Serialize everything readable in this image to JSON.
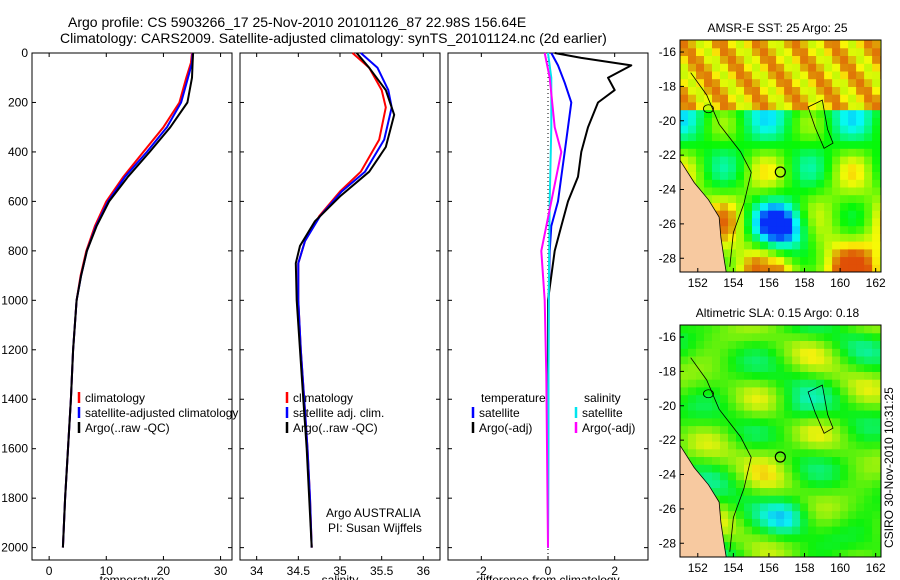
{
  "header": {
    "line1": "Argo profile: CS 5903266_17 25-Nov-2010 20101126_87 22.98S 156.64E",
    "line2": "Climatology: CARS2009. Satellite-adjusted climatology: synTS_20101124.nc (2d earlier)"
  },
  "colors": {
    "climatology": "#ff0000",
    "satellite": "#0000ff",
    "argo": "#000000",
    "satellite_sal": "#00e5ee",
    "argo_sal": "#ff00ff",
    "land": "#f7c9a0"
  },
  "chart_data": [
    {
      "id": "temp",
      "type": "line",
      "xlabel": "temperature",
      "ylabel": "",
      "xlim": [
        -3,
        32
      ],
      "ylim": [
        2050,
        0
      ],
      "xticks": [
        0,
        10,
        20,
        30
      ],
      "yticks": [
        0,
        200,
        400,
        600,
        800,
        1000,
        1200,
        1400,
        1600,
        1800,
        2000
      ],
      "legend": {
        "labels": [
          "climatology",
          "satellite-adjusted climatology",
          "Argo(..raw -QC)"
        ],
        "colors": [
          "#ff0000",
          "#0000ff",
          "#000000"
        ]
      },
      "series": [
        {
          "name": "climatology",
          "color": "#ff0000",
          "points": [
            [
              25.0,
              0
            ],
            [
              24.8,
              40
            ],
            [
              24.0,
              100
            ],
            [
              22.8,
              200
            ],
            [
              20.0,
              300
            ],
            [
              16.5,
              400
            ],
            [
              13.0,
              500
            ],
            [
              10.0,
              600
            ],
            [
              8.0,
              700
            ],
            [
              6.5,
              800
            ],
            [
              5.5,
              900
            ],
            [
              4.8,
              1000
            ],
            [
              4.2,
              1200
            ],
            [
              3.8,
              1400
            ],
            [
              3.3,
              1600
            ],
            [
              2.8,
              1800
            ],
            [
              2.4,
              2000
            ]
          ]
        },
        {
          "name": "satellite-adjusted climatology",
          "color": "#0000ff",
          "points": [
            [
              25.1,
              0
            ],
            [
              25.0,
              40
            ],
            [
              24.3,
              100
            ],
            [
              23.1,
              200
            ],
            [
              20.6,
              300
            ],
            [
              17.1,
              400
            ],
            [
              13.3,
              500
            ],
            [
              10.3,
              600
            ],
            [
              8.2,
              700
            ],
            [
              6.6,
              800
            ],
            [
              5.6,
              900
            ],
            [
              4.8,
              1000
            ],
            [
              4.2,
              1200
            ],
            [
              3.8,
              1400
            ],
            [
              3.3,
              1600
            ],
            [
              2.8,
              1800
            ],
            [
              2.4,
              2000
            ]
          ]
        },
        {
          "name": "Argo(..raw -QC)",
          "color": "#000000",
          "points": [
            [
              25.2,
              0
            ],
            [
              25.1,
              40
            ],
            [
              25.0,
              100
            ],
            [
              24.2,
              200
            ],
            [
              21.2,
              300
            ],
            [
              17.6,
              400
            ],
            [
              13.8,
              500
            ],
            [
              10.5,
              600
            ],
            [
              8.3,
              700
            ],
            [
              6.6,
              800
            ],
            [
              5.6,
              900
            ],
            [
              4.8,
              1000
            ],
            [
              4.2,
              1200
            ],
            [
              3.8,
              1400
            ],
            [
              3.3,
              1600
            ],
            [
              2.8,
              1800
            ],
            [
              2.4,
              2000
            ]
          ]
        }
      ]
    },
    {
      "id": "sal",
      "type": "line",
      "xlabel": "salinity",
      "ylabel": "",
      "xlim": [
        33.8,
        36.2
      ],
      "ylim": [
        2050,
        0
      ],
      "xticks": [
        34,
        34.5,
        35,
        35.5,
        36
      ],
      "legend": {
        "labels": [
          "climatology",
          "satellite adj. clim.",
          "Argo(..raw -QC)"
        ],
        "colors": [
          "#ff0000",
          "#0000ff",
          "#000000"
        ]
      },
      "annotation": [
        "Argo AUSTRALIA",
        "PI: Susan Wijffels"
      ],
      "series": [
        {
          "name": "climatology",
          "color": "#ff0000",
          "points": [
            [
              35.15,
              0
            ],
            [
              35.35,
              60
            ],
            [
              35.5,
              150
            ],
            [
              35.55,
              220
            ],
            [
              35.47,
              350
            ],
            [
              35.25,
              480
            ],
            [
              35.0,
              560
            ],
            [
              34.75,
              660
            ],
            [
              34.58,
              760
            ],
            [
              34.5,
              850
            ],
            [
              34.5,
              1000
            ],
            [
              34.53,
              1200
            ],
            [
              34.57,
              1400
            ],
            [
              34.61,
              1600
            ],
            [
              34.64,
              1800
            ],
            [
              34.66,
              2000
            ]
          ]
        },
        {
          "name": "satellite adj. clim.",
          "color": "#0000ff",
          "points": [
            [
              35.25,
              0
            ],
            [
              35.45,
              60
            ],
            [
              35.58,
              150
            ],
            [
              35.62,
              220
            ],
            [
              35.53,
              350
            ],
            [
              35.3,
              480
            ],
            [
              35.02,
              560
            ],
            [
              34.76,
              660
            ],
            [
              34.58,
              760
            ],
            [
              34.5,
              850
            ],
            [
              34.5,
              1000
            ],
            [
              34.53,
              1200
            ],
            [
              34.57,
              1400
            ],
            [
              34.61,
              1600
            ],
            [
              34.64,
              1800
            ],
            [
              34.66,
              2000
            ]
          ]
        },
        {
          "name": "Argo(..raw -QC)",
          "color": "#000000",
          "points": [
            [
              35.2,
              0
            ],
            [
              35.35,
              60
            ],
            [
              35.55,
              150
            ],
            [
              35.65,
              250
            ],
            [
              35.55,
              380
            ],
            [
              35.35,
              480
            ],
            [
              35.0,
              580
            ],
            [
              34.7,
              680
            ],
            [
              34.52,
              780
            ],
            [
              34.47,
              850
            ],
            [
              34.48,
              1000
            ],
            [
              34.52,
              1200
            ],
            [
              34.56,
              1400
            ],
            [
              34.6,
              1600
            ],
            [
              34.63,
              1800
            ],
            [
              34.66,
              2000
            ]
          ]
        }
      ]
    },
    {
      "id": "diff",
      "type": "line",
      "xlabel": "difference from climatology",
      "ylabel": "",
      "xlim": [
        -3.0,
        3.0
      ],
      "ylim": [
        2050,
        0
      ],
      "xticks": [
        -2,
        0,
        2
      ],
      "legend_left": {
        "title": "temperature",
        "labels": [
          "satellite",
          "Argo(-adj)"
        ],
        "colors": [
          "#0000ff",
          "#000000"
        ]
      },
      "legend_right": {
        "title": "salinity",
        "labels": [
          "satellite",
          "Argo(-adj)"
        ],
        "colors": [
          "#00e5ee",
          "#ff00ff"
        ]
      },
      "series": [
        {
          "name": "temperature satellite",
          "color": "#0000ff",
          "points": [
            [
              0.1,
              0
            ],
            [
              0.3,
              50
            ],
            [
              0.5,
              120
            ],
            [
              0.7,
              200
            ],
            [
              0.6,
              300
            ],
            [
              0.5,
              400
            ],
            [
              0.4,
              500
            ],
            [
              0.3,
              600
            ],
            [
              0.1,
              700
            ],
            [
              0.05,
              800
            ],
            [
              0.02,
              1000
            ],
            [
              0.0,
              2000
            ]
          ]
        },
        {
          "name": "temperature Argo(-adj)",
          "color": "#000000",
          "points": [
            [
              0.2,
              0
            ],
            [
              1.0,
              20
            ],
            [
              2.5,
              50
            ],
            [
              1.8,
              100
            ],
            [
              2.0,
              150
            ],
            [
              1.5,
              200
            ],
            [
              1.2,
              300
            ],
            [
              1.0,
              400
            ],
            [
              0.9,
              500
            ],
            [
              0.6,
              600
            ],
            [
              0.4,
              700
            ],
            [
              0.2,
              800
            ],
            [
              0.0,
              1000
            ],
            [
              0.0,
              2000
            ]
          ]
        },
        {
          "name": "salinity satellite",
          "color": "#00e5ee",
          "points": [
            [
              0.0,
              0
            ],
            [
              0.1,
              100
            ],
            [
              0.1,
              300
            ],
            [
              0.05,
              600
            ],
            [
              0.02,
              1000
            ],
            [
              0.0,
              2000
            ]
          ]
        },
        {
          "name": "salinity Argo(-adj)",
          "color": "#ff00ff",
          "points": [
            [
              -0.1,
              0
            ],
            [
              0.05,
              100
            ],
            [
              0.2,
              300
            ],
            [
              0.4,
              400
            ],
            [
              0.1,
              600
            ],
            [
              -0.2,
              800
            ],
            [
              -0.1,
              1000
            ],
            [
              -0.05,
              1300
            ],
            [
              0.0,
              2000
            ]
          ]
        }
      ]
    },
    {
      "id": "sst_map",
      "type": "heatmap",
      "title": "AMSR-E SST: 25 Argo: 25",
      "xlim": [
        151,
        162.3
      ],
      "ylim": [
        -28.8,
        -15.3
      ],
      "xticks": [
        152,
        154,
        156,
        158,
        160,
        162
      ],
      "yticks": [
        -16,
        -18,
        -20,
        -22,
        -24,
        -26,
        -28
      ],
      "argo_position": [
        156.64,
        -22.98
      ]
    },
    {
      "id": "sla_map",
      "type": "heatmap",
      "title": "Altimetric SLA: 0.15 Argo: 0.18",
      "xlim": [
        151,
        162.3
      ],
      "ylim": [
        -28.8,
        -15.3
      ],
      "xticks": [
        152,
        154,
        156,
        158,
        160,
        162
      ],
      "yticks": [
        -16,
        -18,
        -20,
        -22,
        -24,
        -26,
        -28
      ],
      "argo_position": [
        156.64,
        -22.98
      ]
    }
  ],
  "footer": {
    "stamp": "CSIRO 30-Nov-2010 10:31:25"
  }
}
